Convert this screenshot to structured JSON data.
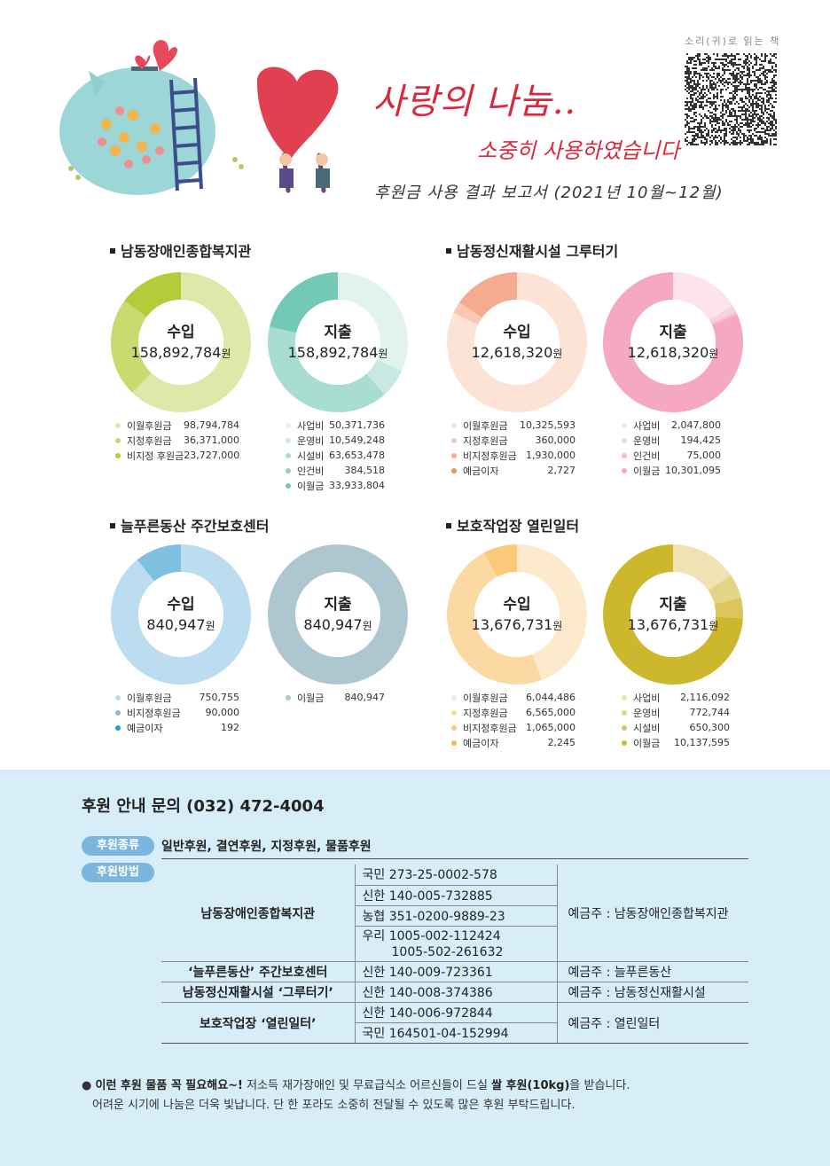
{
  "header": {
    "title_main": "사랑의 나눔..",
    "title_sub": "소중히 사용하였습니다",
    "report_line": "후원금 사용 결과 보고서 (2021년 10월~12월)",
    "qr_label": "소리(귀)로 읽는 책"
  },
  "sections": [
    {
      "title": "남동장애인종합복지관",
      "income": {
        "kind": "수입",
        "amount": "158,892,784",
        "unit": "원",
        "items": [
          {
            "label": "이월후원금",
            "value": "98,794,784",
            "num": 98794784,
            "color": "#dfe8a8"
          },
          {
            "label": "지정후원금",
            "value": "36,371,000",
            "num": 36371000,
            "color": "#c9db6e"
          },
          {
            "label": "비지정 후원금",
            "value": "23,727,000",
            "num": 23727000,
            "color": "#b3cc3a"
          }
        ]
      },
      "expense": {
        "kind": "지출",
        "amount": "158,892,784",
        "unit": "원",
        "items": [
          {
            "label": "사업비",
            "value": "50,371,736",
            "num": 50371736,
            "color": "#e2f3ee"
          },
          {
            "label": "운영비",
            "value": "10,549,248",
            "num": 10549248,
            "color": "#c7e9e1"
          },
          {
            "label": "시설비",
            "value": "63,653,478",
            "num": 63653478,
            "color": "#a8ddd2"
          },
          {
            "label": "인건비",
            "value": "384,518",
            "num": 384518,
            "color": "#8fd3c5"
          },
          {
            "label": "이월금",
            "value": "33,933,804",
            "num": 33933804,
            "color": "#74c8b6"
          }
        ]
      }
    },
    {
      "title": "남동정신재활시설 그루터기",
      "income": {
        "kind": "수입",
        "amount": "12,618,320",
        "unit": "원",
        "items": [
          {
            "label": "이월후원금",
            "value": "10,325,593",
            "num": 10325593,
            "color": "#fde3d6"
          },
          {
            "label": "지정후원금",
            "value": "360,000",
            "num": 360000,
            "color": "#f9c8b2"
          },
          {
            "label": "비지정후원금",
            "value": "1,930,000",
            "num": 1930000,
            "color": "#f5ab90"
          },
          {
            "label": "예금이자",
            "value": "2,727",
            "num": 2727,
            "color": "#ef8c6e"
          }
        ]
      },
      "expense": {
        "kind": "지출",
        "amount": "12,618,320",
        "unit": "원",
        "items": [
          {
            "label": "사업비",
            "value": "2,047,800",
            "num": 2047800,
            "color": "#fde4ec"
          },
          {
            "label": "운영비",
            "value": "194,425",
            "num": 194425,
            "color": "#fbd0dd"
          },
          {
            "label": "인건비",
            "value": "75,000",
            "num": 75000,
            "color": "#f8bccf"
          },
          {
            "label": "이월금",
            "value": "10,301,095",
            "num": 10301095,
            "color": "#f4a8c2"
          }
        ]
      }
    },
    {
      "title": "늘푸른동산 주간보호센터",
      "income": {
        "kind": "수입",
        "amount": "840,947",
        "unit": "원",
        "items": [
          {
            "label": "이월후원금",
            "value": "750,755",
            "num": 750755,
            "color": "#bcdcef"
          },
          {
            "label": "비지정후원금",
            "value": "90,000",
            "num": 90000,
            "color": "#7fbfe0"
          },
          {
            "label": "예금이자",
            "value": "192",
            "num": 192,
            "color": "#1d9fd3"
          }
        ]
      },
      "expense": {
        "kind": "지출",
        "amount": "840,947",
        "unit": "원",
        "items": [
          {
            "label": "이월금",
            "value": "840,947",
            "num": 840947,
            "color": "#adc6cf"
          }
        ]
      }
    },
    {
      "title": "보호작업장 열린일터",
      "income": {
        "kind": "수입",
        "amount": "13,676,731",
        "unit": "원",
        "items": [
          {
            "label": "이월후원금",
            "value": "6,044,486",
            "num": 6044486,
            "color": "#fde9cc"
          },
          {
            "label": "지정후원금",
            "value": "6,565,000",
            "num": 6565000,
            "color": "#fcd9a3"
          },
          {
            "label": "비지정후원금",
            "value": "1,065,000",
            "num": 1065000,
            "color": "#fbc97a"
          },
          {
            "label": "예금이자",
            "value": "2,245",
            "num": 2245,
            "color": "#f7b64e"
          }
        ]
      },
      "expense": {
        "kind": "지출",
        "amount": "13,676,731",
        "unit": "원",
        "items": [
          {
            "label": "사업비",
            "value": "2,116,092",
            "num": 2116092,
            "color": "#efe2b4"
          },
          {
            "label": "운영비",
            "value": "772,744",
            "num": 772744,
            "color": "#e6d486"
          },
          {
            "label": "시설비",
            "value": "650,300",
            "num": 650300,
            "color": "#dcc65c"
          },
          {
            "label": "이월금",
            "value": "10,137,595",
            "num": 10137595,
            "color": "#cdb72c"
          }
        ]
      }
    }
  ],
  "support": {
    "contact": "후원 안내 문의 (032) 472-4004",
    "types_label": "후원종류",
    "types_text": "일반후원, 결연후원, 지정후원, 물품후원",
    "method_label": "후원방법",
    "accounts": [
      {
        "org": "남동장애인종합복지관",
        "accounts": [
          "국민 273-25-0002-578",
          "신한 140-005-732885",
          "농협 351-0200-9889-23",
          "우리 1005-002-112424",
          "1005-502-261632"
        ],
        "holder": "예금주 : 남동장애인종합복지관"
      },
      {
        "org": "‘늘푸른동산’ 주간보호센터",
        "accounts": [
          "신한 140-009-723361"
        ],
        "holder": "예금주 : 늘푸른동산"
      },
      {
        "org": "남동정신재활시설 ‘그루터기’",
        "accounts": [
          "신한 140-008-374386"
        ],
        "holder": "예금주 : 남동정신재활시설"
      },
      {
        "org": "보호작업장 ‘열린일터’",
        "accounts": [
          "신한 140-006-972844",
          "국민 164501-04-152994"
        ],
        "holder": "예금주 : 열린일터"
      }
    ],
    "notice_bold": "이런 후원 물품 꼭 필요해요~!",
    "notice_mid": " 저소득 재가장애인 및 무료급식소 어르신들이 드실 ",
    "notice_bold2": "쌀 후원(10kg)",
    "notice_end": "을 받습니다.",
    "notice_line2": "어려운 시기에 나눔은 더욱 빛납니다. 단 한 포라도 소중히 전달될 수 있도록 많은 후원 부탁드립니다."
  }
}
